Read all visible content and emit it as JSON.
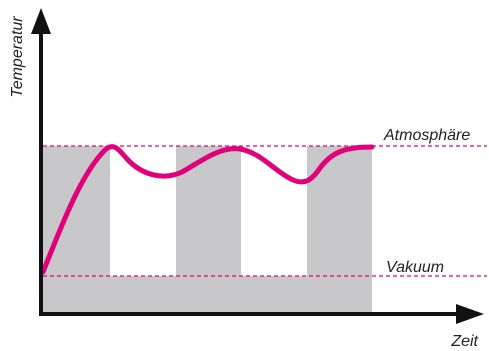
{
  "labels": {
    "y_axis": "Temperatur",
    "x_axis": "Zeit",
    "upper_level": "Atmosphäre",
    "lower_level": "Vakuum"
  },
  "colors": {
    "curve": "#e0007a",
    "level_lines": "#e0007a",
    "shaded": "#c8c8ca",
    "axes": "#111111"
  }
}
